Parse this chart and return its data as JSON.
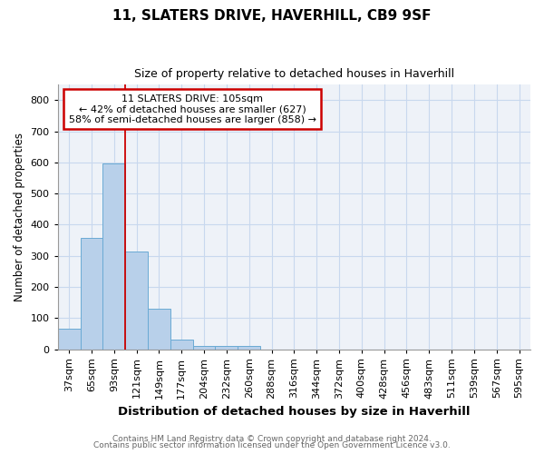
{
  "title1": "11, SLATERS DRIVE, HAVERHILL, CB9 9SF",
  "title2": "Size of property relative to detached houses in Haverhill",
  "xlabel": "Distribution of detached houses by size in Haverhill",
  "ylabel": "Number of detached properties",
  "footer1": "Contains HM Land Registry data © Crown copyright and database right 2024.",
  "footer2": "Contains public sector information licensed under the Open Government Licence v3.0.",
  "annotation_line1": "11 SLATERS DRIVE: 105sqm",
  "annotation_line2": "← 42% of detached houses are smaller (627)",
  "annotation_line3": "58% of semi-detached houses are larger (858) →",
  "bar_labels": [
    "37sqm",
    "65sqm",
    "93sqm",
    "121sqm",
    "149sqm",
    "177sqm",
    "204sqm",
    "232sqm",
    "260sqm",
    "288sqm",
    "316sqm",
    "344sqm",
    "372sqm",
    "400sqm",
    "428sqm",
    "456sqm",
    "483sqm",
    "511sqm",
    "539sqm",
    "567sqm",
    "595sqm"
  ],
  "bar_values": [
    65,
    358,
    597,
    315,
    130,
    30,
    10,
    10,
    10,
    0,
    0,
    0,
    0,
    0,
    0,
    0,
    0,
    0,
    0,
    0,
    0
  ],
  "bar_color": "#b8d0ea",
  "bar_edge_color": "#6aaad4",
  "ylim": [
    0,
    850
  ],
  "yticks": [
    0,
    100,
    200,
    300,
    400,
    500,
    600,
    700,
    800
  ],
  "grid_color": "#c8d8ee",
  "annotation_box_color": "#cc0000",
  "bg_color": "#eef2f8",
  "title1_fontsize": 11,
  "title2_fontsize": 9,
  "ylabel_fontsize": 8.5,
  "xlabel_fontsize": 9.5,
  "tick_fontsize": 8,
  "footer_fontsize": 6.5
}
